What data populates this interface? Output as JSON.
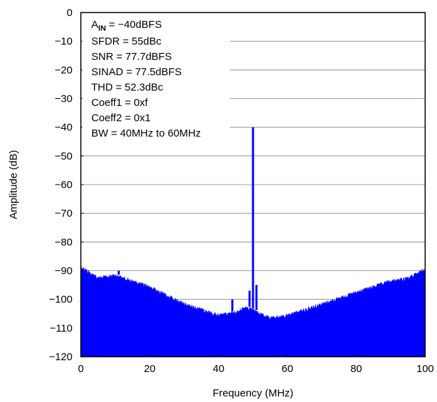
{
  "colors": {
    "series": "#0000ff",
    "grid": "#808080",
    "axis": "#000000",
    "background": "#ffffff"
  },
  "chart_data": {
    "type": "line",
    "title": "",
    "xlabel": "Frequency (MHz)",
    "ylabel": "Amplitude (dB)",
    "xlim": [
      0,
      100
    ],
    "ylim": [
      -120,
      0
    ],
    "xticks": [
      0,
      20,
      40,
      60,
      80,
      100
    ],
    "xtick_labels": [
      "0",
      "20",
      "40",
      "60",
      "80",
      "100"
    ],
    "yticks": [
      0,
      -10,
      -20,
      -30,
      -40,
      -50,
      -60,
      -70,
      -80,
      -90,
      -100,
      -110,
      -120
    ],
    "ytick_labels": [
      "0",
      "−10",
      "−20",
      "−30",
      "−40",
      "−50",
      "−60",
      "−70",
      "−80",
      "−90",
      "−100",
      "−110",
      "−120"
    ],
    "grid": "horizontal",
    "legend": "none",
    "annotation": {
      "ain_prefix": "A",
      "ain_sub": "IN",
      "ain_value": " = −40dBFS",
      "lines": [
        "SFDR = 55dBc",
        "SNR = 77.7dBFS",
        "SINAD = 77.5dBFS",
        "THD = 52.3dBc",
        "Coeff1 = 0xf",
        "Coeff2 = 0x1",
        "BW = 40MHz to 60MHz"
      ],
      "placement": "top-left"
    },
    "series": [
      {
        "noise_floor_envelope": {
          "x": [
            0,
            5,
            10,
            15,
            20,
            25,
            30,
            35,
            40,
            45,
            48,
            55,
            60,
            65,
            70,
            75,
            80,
            85,
            90,
            95,
            100
          ],
          "upper": [
            -88,
            -92,
            -91,
            -93,
            -95,
            -98,
            -101,
            -103,
            -105,
            -104,
            -102,
            -106,
            -105,
            -103,
            -101,
            -99,
            -97,
            -95,
            -93,
            -92,
            -89
          ],
          "lower": [
            -120,
            -120,
            -120,
            -120,
            -120,
            -120,
            -120,
            -120,
            -120,
            -120,
            -120,
            -120,
            -120,
            -120,
            -120,
            -120,
            -120,
            -120,
            -120,
            -120,
            -120
          ]
        },
        "peaks": [
          {
            "x": 50,
            "y": -40
          },
          {
            "x": 51,
            "y": -95
          },
          {
            "x": 49,
            "y": -97
          },
          {
            "x": 44,
            "y": -100
          },
          {
            "x": 11,
            "y": -90
          }
        ]
      }
    ]
  }
}
